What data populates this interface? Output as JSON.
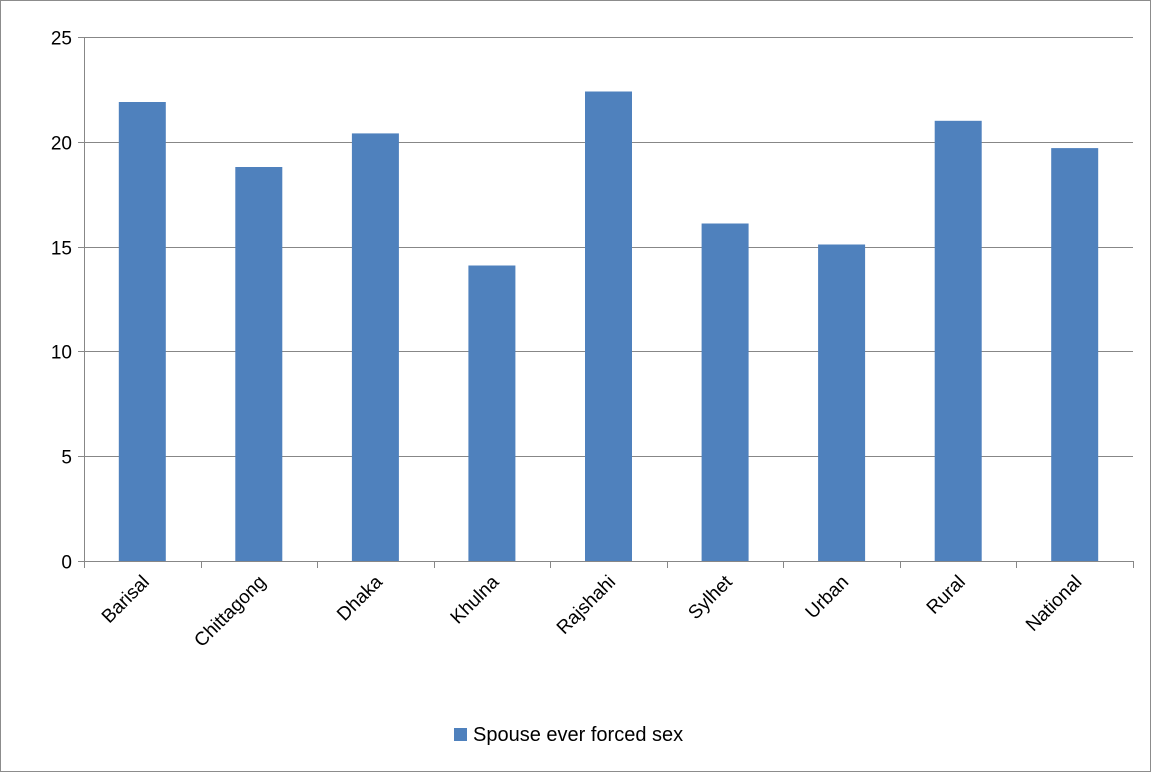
{
  "chart_data": {
    "type": "bar",
    "title": "",
    "xlabel": "",
    "ylabel": "",
    "categories": [
      "Barisal",
      "Chittagong",
      "Dhaka",
      "Khulna",
      "Rajshahi",
      "Sylhet",
      "Urban",
      "Rural",
      "National"
    ],
    "series": [
      {
        "name": "Spouse ever forced sex",
        "values": [
          21.9,
          18.8,
          20.4,
          14.1,
          22.4,
          16.1,
          15.1,
          21.0,
          19.7
        ],
        "color": "#4f81bd"
      }
    ],
    "ylim": [
      0,
      25
    ],
    "yticks": [
      0,
      5,
      10,
      15,
      20,
      25
    ],
    "grid": true,
    "legend": "bottom",
    "colors": {
      "bar": "#4f81bd",
      "gridline": "#878787",
      "axis": "#878787"
    }
  }
}
